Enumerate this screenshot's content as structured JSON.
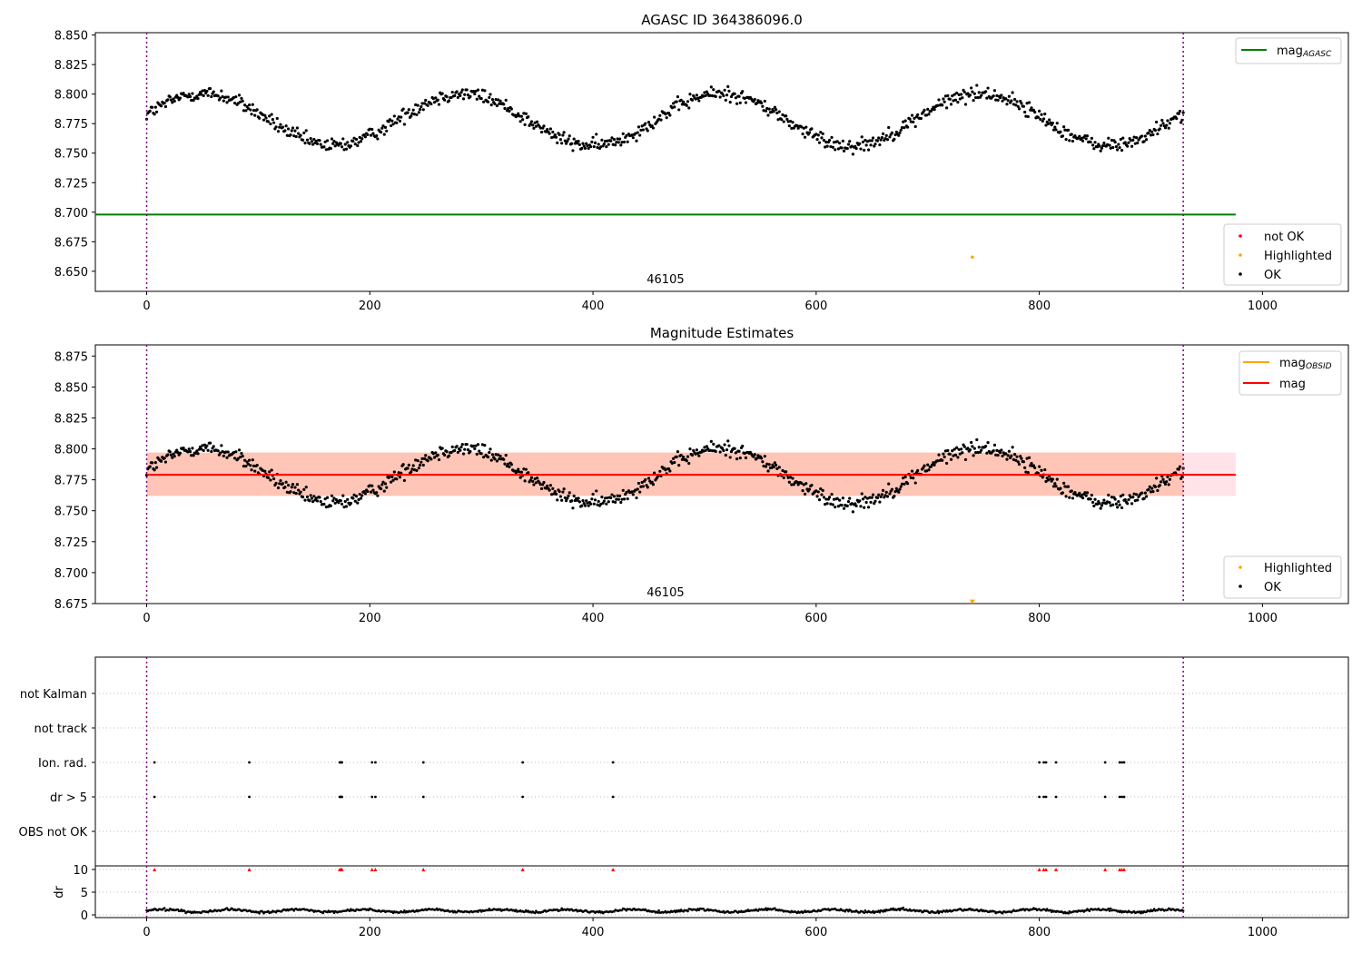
{
  "chart_data": [
    {
      "type": "scatter",
      "title": "AGASC ID 364386096.0",
      "xlim": [
        -46,
        1077
      ],
      "ylim": [
        8.633,
        8.852
      ],
      "xticks": [
        0,
        200,
        400,
        600,
        800,
        1000
      ],
      "yticks": [
        8.65,
        8.675,
        8.7,
        8.725,
        8.75,
        8.775,
        8.8,
        8.825,
        8.85
      ],
      "ytick_labels": [
        "8.650",
        "8.675",
        "8.700",
        "8.725",
        "8.750",
        "8.775",
        "8.800",
        "8.825",
        "8.850"
      ],
      "obsid_label": "46105",
      "obsid_label_x": 465,
      "obs_boundaries": [
        0,
        929
      ],
      "series": [
        {
          "name": "OK",
          "color": "#000000",
          "x_range": [
            0,
            929
          ],
          "base": 8.7785,
          "amplitude": 0.022,
          "period": 232,
          "phase": 0.2,
          "noise": 0.006
        },
        {
          "name": "Highlighted",
          "color": "#ffa500",
          "points": [
            [
              740,
              8.662
            ]
          ]
        },
        {
          "name": "not OK",
          "color": "#ff0000",
          "points": []
        }
      ],
      "lines": [
        {
          "name": "mag_AGASC",
          "color": "#008000",
          "y": 8.698,
          "x": [
            -46,
            976
          ]
        }
      ],
      "legend_lines": [
        {
          "text": "mag",
          "sub": "AGASC",
          "color": "#008000"
        }
      ],
      "legend_markers": [
        {
          "text": "not OK",
          "color": "#ff0000"
        },
        {
          "text": "Highlighted",
          "color": "#ffa500"
        },
        {
          "text": "OK",
          "color": "#000000"
        }
      ]
    },
    {
      "type": "scatter",
      "title": "Magnitude Estimates",
      "xlim": [
        -46,
        1077
      ],
      "ylim": [
        8.675,
        8.884
      ],
      "xticks": [
        0,
        200,
        400,
        600,
        800,
        1000
      ],
      "yticks": [
        8.675,
        8.7,
        8.725,
        8.75,
        8.775,
        8.8,
        8.825,
        8.85,
        8.875
      ],
      "ytick_labels": [
        "8.675",
        "8.700",
        "8.725",
        "8.750",
        "8.775",
        "8.800",
        "8.825",
        "8.850",
        "8.875"
      ],
      "obsid_label": "46105",
      "obsid_label_x": 465,
      "obs_boundaries": [
        0,
        929
      ],
      "series": [
        {
          "name": "OK",
          "color": "#000000",
          "x_range": [
            0,
            929
          ],
          "base": 8.7785,
          "amplitude": 0.022,
          "period": 232,
          "phase": 0.2,
          "noise": 0.006
        },
        {
          "name": "Highlighted",
          "color": "#ffa500",
          "points": [
            [
              740,
              8.676
            ]
          ]
        }
      ],
      "lines": [
        {
          "name": "mag",
          "color": "#ff0000",
          "y": 8.779,
          "x": [
            0,
            976
          ]
        }
      ],
      "bands": [
        {
          "name": "mag_OBSID",
          "color": "#ffa07a",
          "y": [
            8.762,
            8.797
          ],
          "x": [
            0,
            929
          ]
        },
        {
          "name": "mag range",
          "color": "#ffc0cb",
          "y": [
            8.762,
            8.797
          ],
          "x": [
            0,
            976
          ]
        }
      ],
      "legend_lines": [
        {
          "text": "mag",
          "sub": "OBSID",
          "color": "#ffa500"
        },
        {
          "text": "mag",
          "sub": "",
          "color": "#ff0000"
        }
      ],
      "legend_markers": [
        {
          "text": "Highlighted",
          "color": "#ffa500"
        },
        {
          "text": "OK",
          "color": "#000000"
        }
      ]
    },
    {
      "type": "scatter",
      "title": "",
      "xlim": [
        -46,
        1077
      ],
      "obs_boundaries": [
        0,
        929
      ],
      "flag_categories": [
        "not Kalman",
        "not track",
        "Ion. rad.",
        "dr > 5",
        "OBS not OK"
      ],
      "flag_points": {
        "Ion. rad.": [
          7,
          92,
          173,
          174,
          175,
          202,
          205,
          248,
          337,
          418,
          800,
          804,
          806,
          815,
          859,
          872,
          874,
          876
        ],
        "dr > 5": [
          7,
          92,
          173,
          174,
          175,
          202,
          205,
          248,
          337,
          418,
          800,
          804,
          806,
          815,
          859,
          872,
          874,
          876
        ]
      }
    },
    {
      "type": "scatter",
      "title": "",
      "xlim": [
        -46,
        1077
      ],
      "ylim": [
        -0.6,
        10.8
      ],
      "ylabel": "dr",
      "xticks": [
        0,
        200,
        400,
        600,
        800,
        1000
      ],
      "yticks": [
        0,
        5,
        10
      ],
      "obs_boundaries": [
        0,
        929
      ],
      "clipped_x": [
        7,
        92,
        173,
        174,
        175,
        202,
        205,
        248,
        337,
        418,
        800,
        804,
        806,
        815,
        859,
        872,
        874,
        876
      ],
      "clipped_y": 10,
      "dr_series": {
        "x_range": [
          0,
          929
        ],
        "base": 0.9,
        "amplitude": 0.3,
        "period": 60,
        "noise": 0.25
      }
    }
  ]
}
